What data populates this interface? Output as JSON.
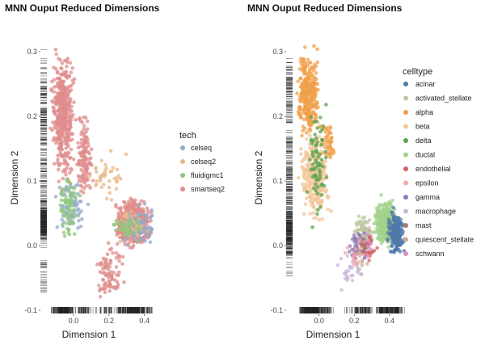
{
  "chart_data": [
    {
      "type": "scatter",
      "title": "MNN Ouput Reduced Dimensions",
      "xlabel": "Dimension 1",
      "ylabel": "Dimension 2",
      "xlim": [
        -0.15,
        0.52
      ],
      "ylim": [
        -0.105,
        0.335
      ],
      "xticks": [
        "0.0",
        "0.2",
        "0.4"
      ],
      "yticks": [
        "-0.1",
        "0.0",
        "0.1",
        "0.2",
        "0.3"
      ],
      "grid": false,
      "rug": true,
      "legend_title": "tech",
      "legend_position": "right",
      "series": [
        {
          "name": "celseq",
          "color": "#92a9c9"
        },
        {
          "name": "celseq2",
          "color": "#e8b98b"
        },
        {
          "name": "fluidigmc1",
          "color": "#8fc77f"
        },
        {
          "name": "smartseq2",
          "color": "#e08c8c"
        }
      ],
      "clusters": [
        {
          "series": "smartseq2",
          "x": [
            -0.14,
            0.02
          ],
          "y": [
            0.08,
            0.32
          ],
          "count": 420
        },
        {
          "series": "smartseq2",
          "x": [
            0.0,
            0.12
          ],
          "y": [
            0.05,
            0.22
          ],
          "count": 120
        },
        {
          "series": "smartseq2",
          "x": [
            0.22,
            0.46
          ],
          "y": [
            -0.01,
            0.08
          ],
          "count": 520
        },
        {
          "series": "smartseq2",
          "x": [
            0.1,
            0.3
          ],
          "y": [
            -0.09,
            0.02
          ],
          "count": 90
        },
        {
          "series": "celseq",
          "x": [
            -0.12,
            0.1
          ],
          "y": [
            0.0,
            0.12
          ],
          "count": 70
        },
        {
          "series": "celseq",
          "x": [
            0.25,
            0.47
          ],
          "y": [
            -0.01,
            0.07
          ],
          "count": 90
        },
        {
          "series": "celseq2",
          "x": [
            0.05,
            0.32
          ],
          "y": [
            0.05,
            0.16
          ],
          "count": 40
        },
        {
          "series": "celseq2",
          "x": [
            0.22,
            0.45
          ],
          "y": [
            0.0,
            0.06
          ],
          "count": 40
        },
        {
          "series": "fluidigmc1",
          "x": [
            -0.1,
            0.05
          ],
          "y": [
            0.0,
            0.12
          ],
          "count": 70
        },
        {
          "series": "fluidigmc1",
          "x": [
            0.2,
            0.42
          ],
          "y": [
            0.0,
            0.05
          ],
          "count": 40
        }
      ]
    },
    {
      "type": "scatter",
      "title": "MNN Ouput Reduced Dimensions",
      "xlabel": "Dimension 1",
      "ylabel": "Dimension 2",
      "xlim": [
        -0.15,
        0.52
      ],
      "ylim": [
        -0.105,
        0.335
      ],
      "xticks": [
        "0.0",
        "0.2",
        "0.4"
      ],
      "yticks": [
        "-0.1",
        "0.0",
        "0.1",
        "0.2",
        "0.3"
      ],
      "grid": false,
      "rug": true,
      "legend_title": "celltype",
      "legend_position": "right",
      "series": [
        {
          "name": "acinar",
          "color": "#4f79a8"
        },
        {
          "name": "activated_stellate",
          "color": "#bcc9a3"
        },
        {
          "name": "alpha",
          "color": "#f0a04b"
        },
        {
          "name": "beta",
          "color": "#f3c79b"
        },
        {
          "name": "delta",
          "color": "#5aa34b"
        },
        {
          "name": "ductal",
          "color": "#a3d38d"
        },
        {
          "name": "endothelial",
          "color": "#d35f5f"
        },
        {
          "name": "epsilon",
          "color": "#f4a9a9"
        },
        {
          "name": "gamma",
          "color": "#9178b5"
        },
        {
          "name": "macrophage",
          "color": "#c8b8db"
        },
        {
          "name": "mast",
          "color": "#a07a6a"
        },
        {
          "name": "quiescent_stellate",
          "color": "#c9a99e"
        },
        {
          "name": "schwann",
          "color": "#d98fc7"
        }
      ],
      "clusters": [
        {
          "series": "alpha",
          "x": [
            -0.14,
            0.02
          ],
          "y": [
            0.15,
            0.32
          ],
          "count": 300
        },
        {
          "series": "alpha",
          "x": [
            0.0,
            0.1
          ],
          "y": [
            0.12,
            0.2
          ],
          "count": 60
        },
        {
          "series": "beta",
          "x": [
            -0.13,
            0.08
          ],
          "y": [
            0.02,
            0.2
          ],
          "count": 300
        },
        {
          "series": "delta",
          "x": [
            -0.08,
            0.06
          ],
          "y": [
            0.02,
            0.24
          ],
          "count": 70
        },
        {
          "series": "ductal",
          "x": [
            0.3,
            0.45
          ],
          "y": [
            -0.01,
            0.08
          ],
          "count": 320
        },
        {
          "series": "acinar",
          "x": [
            0.38,
            0.5
          ],
          "y": [
            -0.02,
            0.06
          ],
          "count": 200
        },
        {
          "series": "activated_stellate",
          "x": [
            0.18,
            0.32
          ],
          "y": [
            -0.02,
            0.06
          ],
          "count": 80
        },
        {
          "series": "quiescent_stellate",
          "x": [
            0.18,
            0.32
          ],
          "y": [
            -0.05,
            0.04
          ],
          "count": 40
        },
        {
          "series": "gamma",
          "x": [
            0.15,
            0.3
          ],
          "y": [
            -0.04,
            0.04
          ],
          "count": 40
        },
        {
          "series": "endothelial",
          "x": [
            0.2,
            0.35
          ],
          "y": [
            -0.03,
            0.03
          ],
          "count": 25
        },
        {
          "series": "macrophage",
          "x": [
            0.1,
            0.25
          ],
          "y": [
            -0.08,
            0.0
          ],
          "count": 25
        },
        {
          "series": "epsilon",
          "x": [
            0.1,
            0.3
          ],
          "y": [
            -0.05,
            0.02
          ],
          "count": 15
        },
        {
          "series": "mast",
          "x": [
            0.22,
            0.3
          ],
          "y": [
            -0.02,
            0.02
          ],
          "count": 8
        },
        {
          "series": "schwann",
          "x": [
            0.22,
            0.32
          ],
          "y": [
            -0.03,
            0.02
          ],
          "count": 8
        }
      ]
    }
  ]
}
